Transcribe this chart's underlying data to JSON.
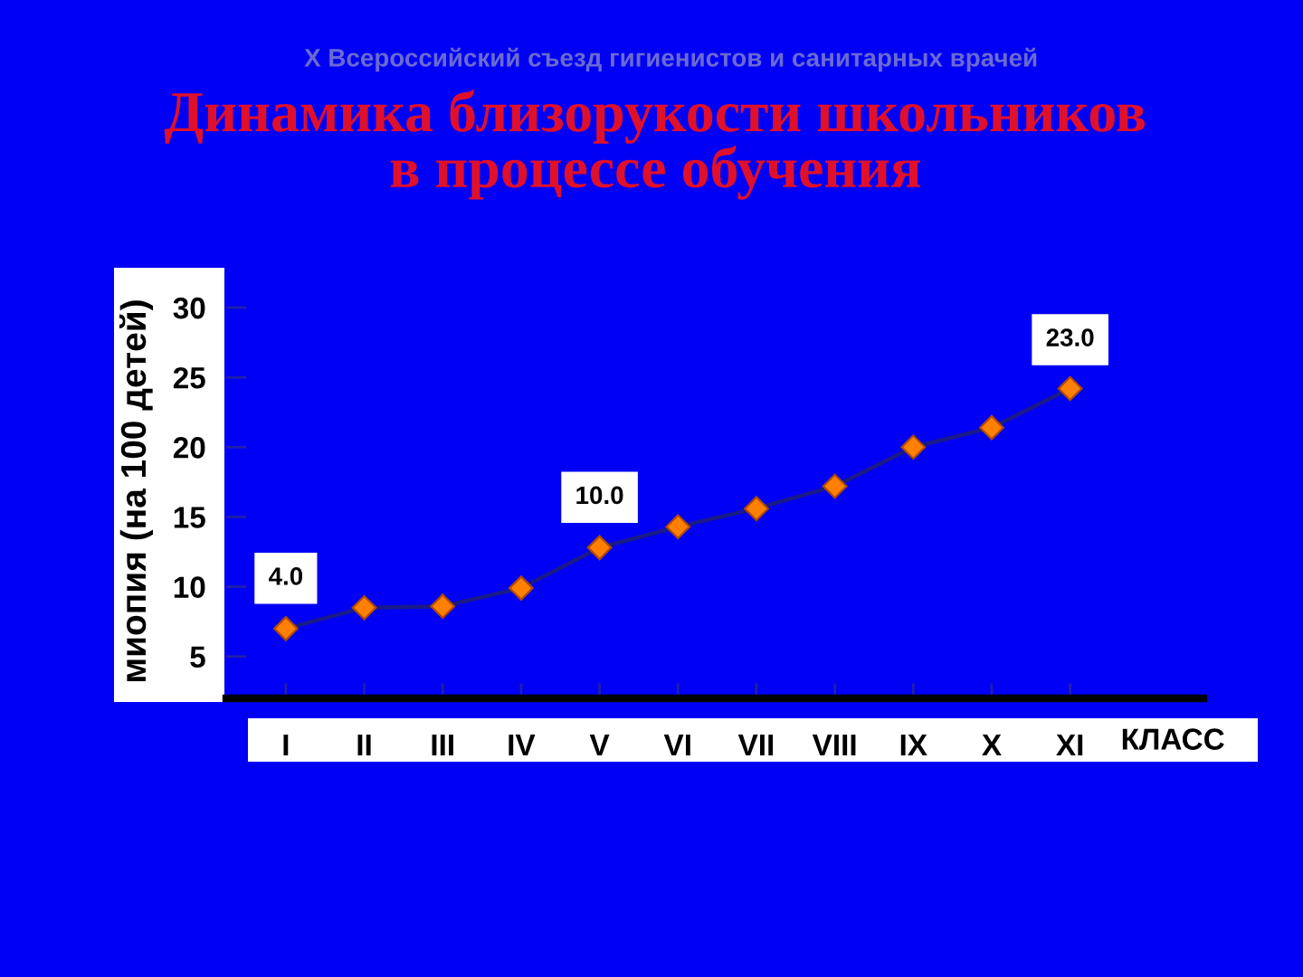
{
  "chart_data": {
    "type": "line",
    "subtitle": "X Всероссийский съезд гигиенистов и санитарных врачей",
    "title": "Динамика близорукости школьников\nв процессе обучения",
    "ylabel": "миопия (на 100 детей)",
    "xlabel": "КЛАСС",
    "categories": [
      "I",
      "II",
      "III",
      "IV",
      "V",
      "VI",
      "VII",
      "VIII",
      "IX",
      "X",
      "XI"
    ],
    "series": [
      {
        "color": "#ff8000",
        "values": [
          7.0,
          8.5,
          8.6,
          9.9,
          12.8,
          14.3,
          15.6,
          17.2,
          20.0,
          21.4,
          24.2
        ]
      }
    ],
    "ylim": [
      2,
      30
    ],
    "yticks": [
      5,
      10,
      15,
      20,
      25,
      30
    ],
    "marker": "diamond",
    "line_style": "solid",
    "grid": false,
    "legend": false,
    "annotations": [
      {
        "text": "4.0",
        "x": "I",
        "y": 10.6
      },
      {
        "text": "10.0",
        "x": "V",
        "y": 16.4
      },
      {
        "text": "23.0",
        "x": "XI",
        "y": 27.7
      }
    ]
  }
}
